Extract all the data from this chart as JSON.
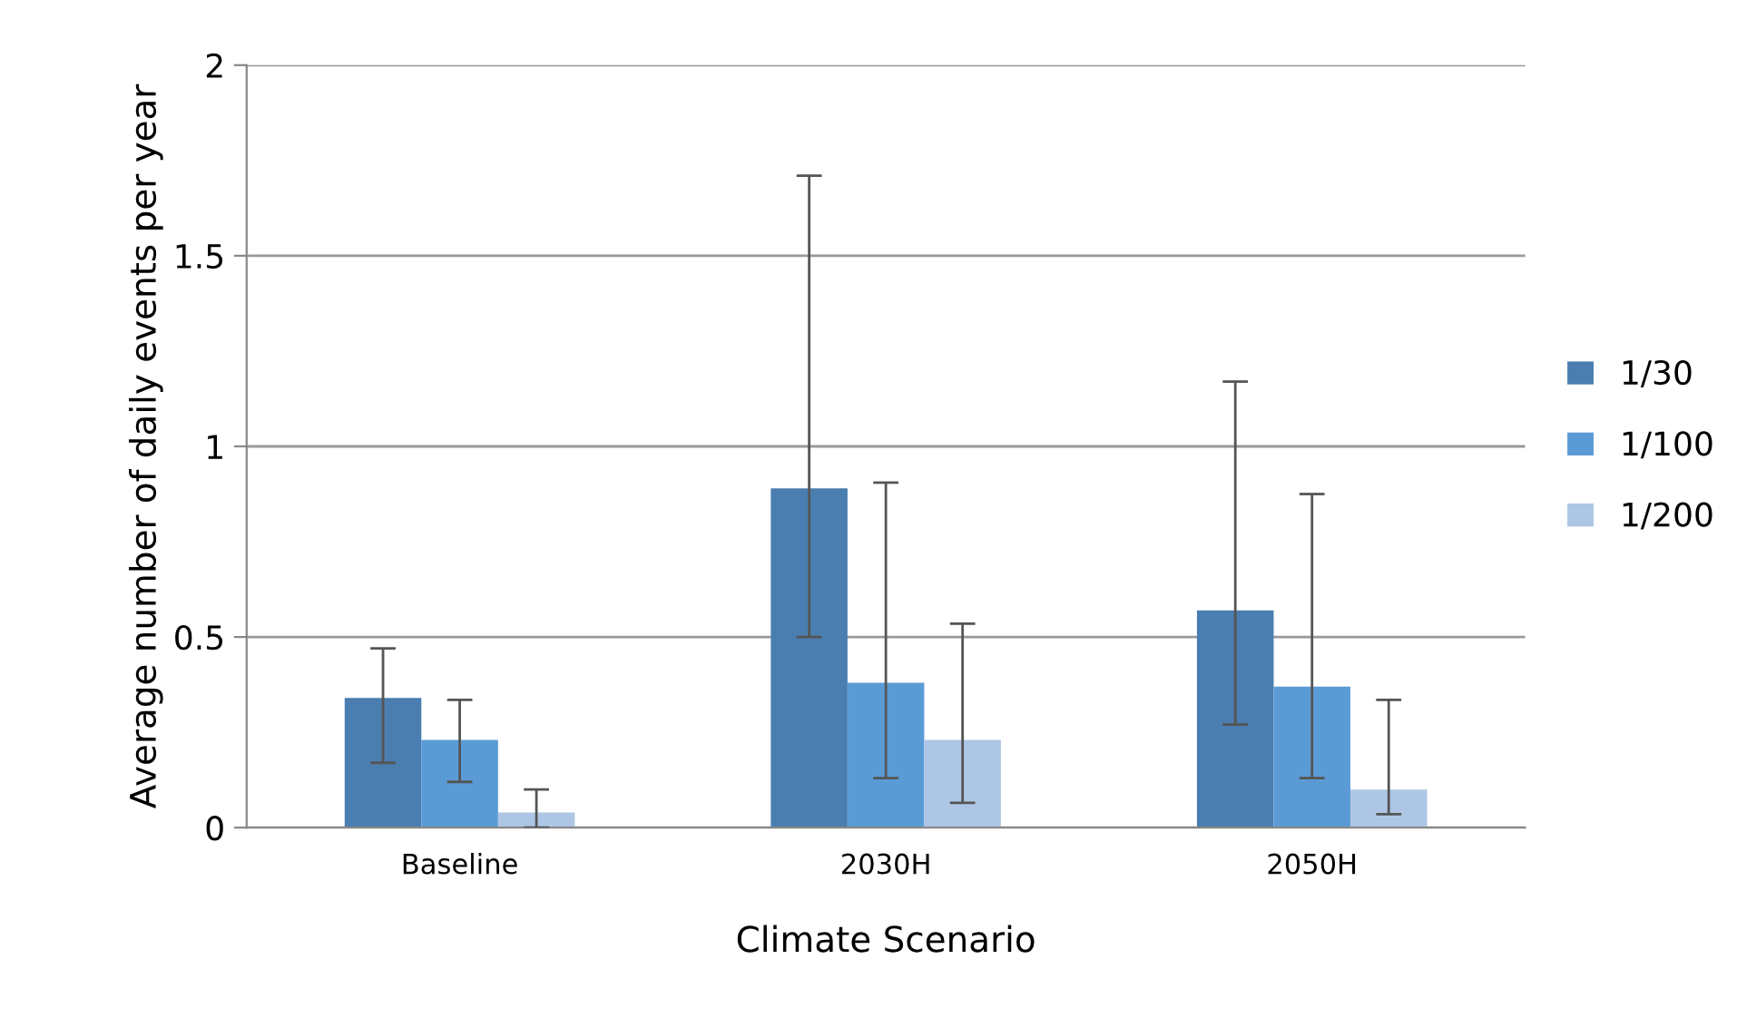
{
  "chart_data": {
    "type": "bar",
    "xlabel": "Climate Scenario",
    "ylabel": "Average number of daily events per year",
    "categories": [
      "Baseline",
      "2030H",
      "2050H"
    ],
    "series": [
      {
        "name": "1/30",
        "color": "#4a7eb0",
        "values": [
          0.34,
          0.89,
          0.57
        ],
        "errors": [
          [
            0.17,
            0.47
          ],
          [
            0.5,
            1.71
          ],
          [
            0.27,
            1.17
          ]
        ]
      },
      {
        "name": "1/100",
        "color": "#5b9bd5",
        "values": [
          0.23,
          0.38,
          0.37
        ],
        "errors": [
          [
            0.12,
            0.335
          ],
          [
            0.13,
            0.905
          ],
          [
            0.13,
            0.875
          ]
        ]
      },
      {
        "name": "1/200",
        "color": "#adc6e5",
        "values": [
          0.04,
          0.23,
          0.1
        ],
        "errors": [
          [
            0.0,
            0.1
          ],
          [
            0.065,
            0.535
          ],
          [
            0.035,
            0.335
          ]
        ]
      }
    ],
    "ylim": [
      0,
      2
    ],
    "yticks": [
      0,
      0.5,
      1,
      1.5,
      2
    ],
    "grid": "y",
    "legend": "right"
  }
}
